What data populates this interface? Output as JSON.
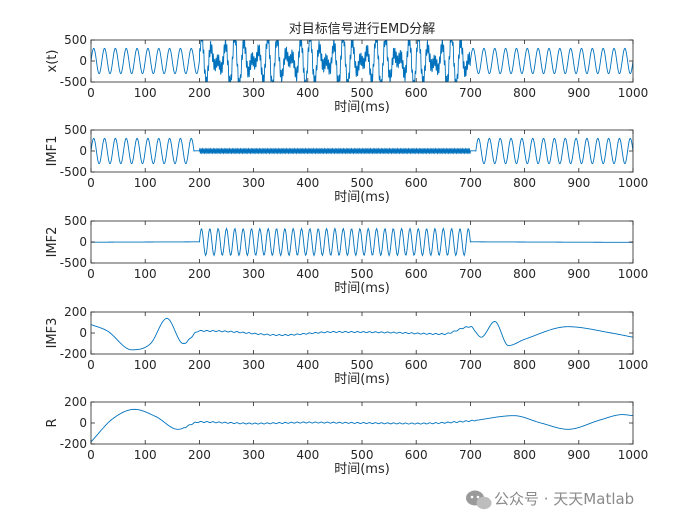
{
  "chart_data": {
    "type": "line",
    "title": "对目标信号进行EMD分解",
    "xlabel": "时间(ms)",
    "xlim": [
      0,
      1000
    ],
    "xticks": [
      0,
      100,
      200,
      300,
      400,
      500,
      600,
      700,
      800,
      900,
      1000
    ],
    "line_color": "#0072BD",
    "subplots": [
      {
        "ylabel": "x(t)",
        "ylim": [
          -500,
          500
        ],
        "yticks": [
          500,
          0,
          -500
        ],
        "series": [
          {
            "component": "sinusoid",
            "from": 0,
            "to": 1000,
            "cycles_per_ms": 0.05,
            "amplitude": 300
          },
          {
            "component": "sinusoid",
            "from": 200,
            "to": 700,
            "cycles_per_ms": 0.4,
            "amplitude": 150
          },
          {
            "component": "sinusoid",
            "from": 200,
            "to": 700,
            "cycles_per_ms": 0.065,
            "amplitude": 320
          }
        ]
      },
      {
        "ylabel": "IMF1",
        "ylim": [
          -500,
          500
        ],
        "yticks": [
          500,
          0,
          -500
        ],
        "segments": [
          {
            "from": 0,
            "to": 190,
            "cycles_per_ms": 0.05,
            "amplitude": 300
          },
          {
            "from": 200,
            "to": 700,
            "cycles_per_ms": 0.4,
            "amplitude": 60
          },
          {
            "from": 710,
            "to": 1000,
            "cycles_per_ms": 0.05,
            "amplitude": 300
          }
        ]
      },
      {
        "ylabel": "IMF2",
        "ylim": [
          -500,
          500
        ],
        "yticks": [
          500,
          0,
          -500
        ],
        "segments": [
          {
            "from": 200,
            "to": 700,
            "cycles_per_ms": 0.065,
            "amplitude": 320
          }
        ]
      },
      {
        "ylabel": "IMF3",
        "ylim": [
          -200,
          200
        ],
        "yticks": [
          200,
          0,
          -200
        ],
        "points": [
          [
            0,
            80
          ],
          [
            30,
            20
          ],
          [
            75,
            -160
          ],
          [
            110,
            -100
          ],
          [
            140,
            140
          ],
          [
            170,
            -100
          ],
          [
            200,
            20
          ],
          [
            250,
            15
          ],
          [
            350,
            -20
          ],
          [
            450,
            10
          ],
          [
            550,
            5
          ],
          [
            650,
            -10
          ],
          [
            700,
            60
          ],
          [
            720,
            -40
          ],
          [
            745,
            110
          ],
          [
            770,
            -120
          ],
          [
            800,
            -60
          ],
          [
            880,
            60
          ],
          [
            960,
            0
          ],
          [
            1000,
            -40
          ]
        ]
      },
      {
        "ylabel": "R",
        "ylim": [
          -200,
          200
        ],
        "yticks": [
          200,
          0,
          -200
        ],
        "points": [
          [
            0,
            -180
          ],
          [
            40,
            40
          ],
          [
            80,
            130
          ],
          [
            120,
            60
          ],
          [
            160,
            -60
          ],
          [
            200,
            10
          ],
          [
            300,
            -5
          ],
          [
            400,
            5
          ],
          [
            500,
            0
          ],
          [
            600,
            -5
          ],
          [
            700,
            20
          ],
          [
            780,
            70
          ],
          [
            830,
            0
          ],
          [
            880,
            -60
          ],
          [
            940,
            30
          ],
          [
            980,
            80
          ],
          [
            1000,
            70
          ]
        ]
      }
    ]
  },
  "watermark": {
    "text": "公众号 · 天天Matlab",
    "icon": "wechat-icon"
  }
}
